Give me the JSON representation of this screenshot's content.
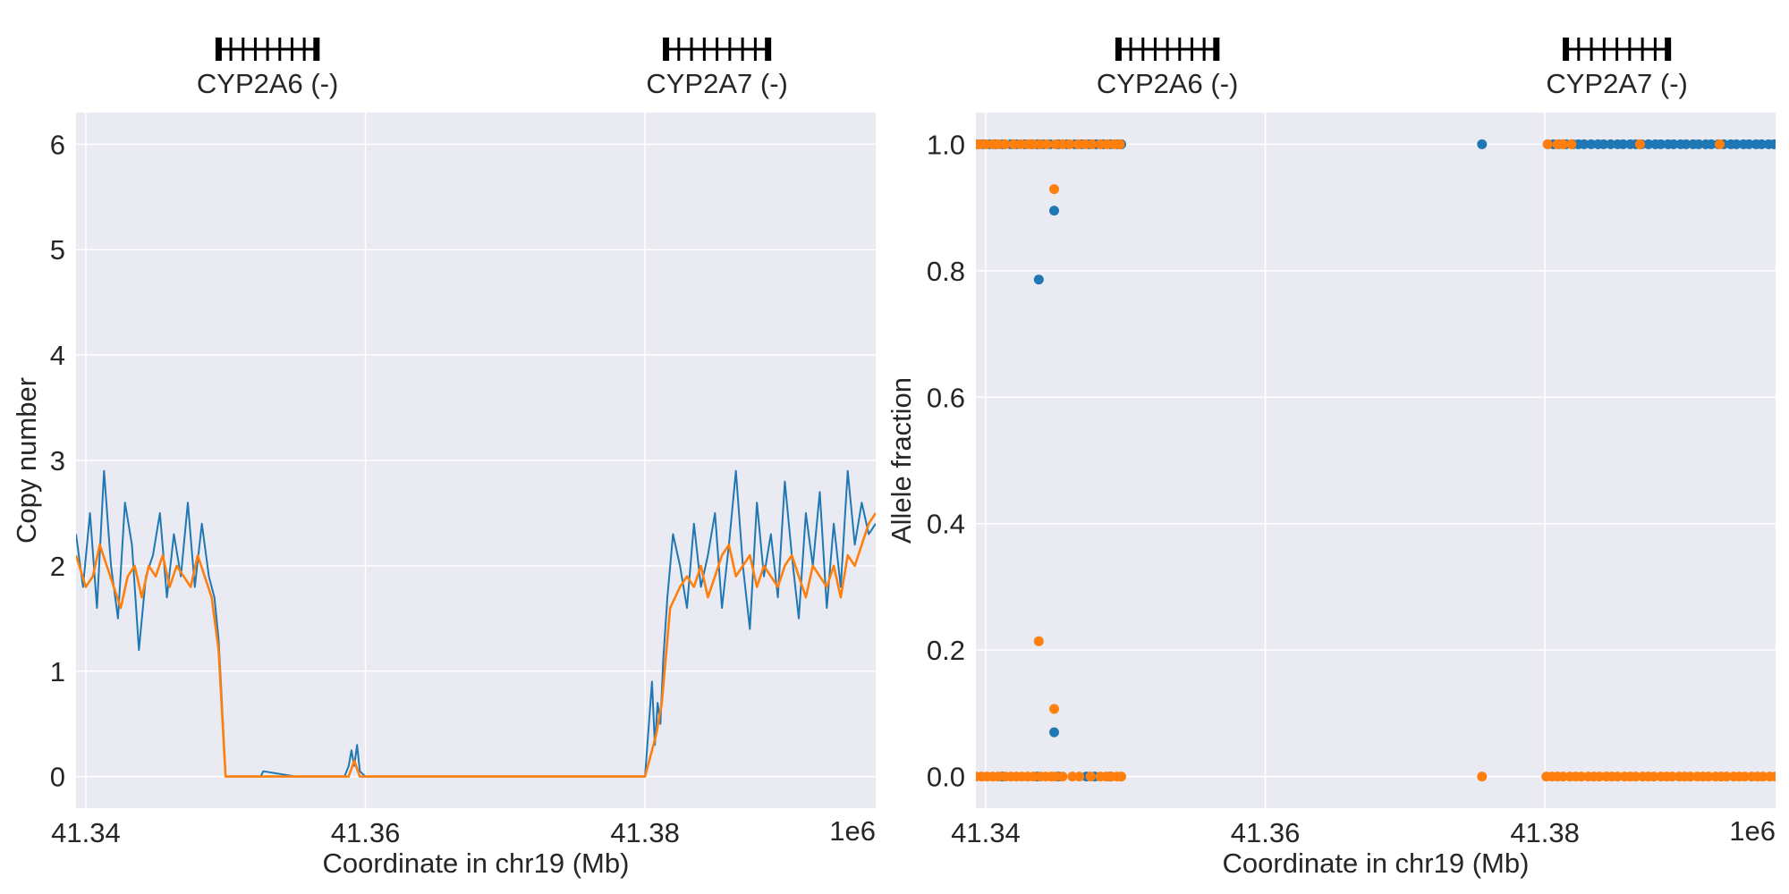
{
  "chart_data": [
    {
      "type": "line",
      "xlabel": "Coordinate in chr19 (Mb)",
      "ylabel": "Copy number",
      "x_offset_label": "1e6",
      "xlim": [
        41.3393,
        41.3965
      ],
      "ylim": [
        -0.3,
        6.3
      ],
      "x_ticks": [
        41.34,
        41.36,
        41.38
      ],
      "x_tick_labels": [
        "41.34",
        "41.36",
        "41.38"
      ],
      "y_ticks": [
        0,
        1,
        2,
        3,
        4,
        5,
        6
      ],
      "y_tick_labels": [
        "0",
        "1",
        "2",
        "3",
        "4",
        "5",
        "6"
      ],
      "grid": true,
      "genes": [
        {
          "name": "CYP2A6 (-)",
          "start": 41.3495,
          "end": 41.3565
        },
        {
          "name": "CYP2A7 (-)",
          "start": 41.3815,
          "end": 41.3888
        }
      ],
      "series": [
        {
          "color": "#1f77b4",
          "x": [
            41.3393,
            41.3398,
            41.3403,
            41.3408,
            41.3413,
            41.3418,
            41.3423,
            41.3428,
            41.3433,
            41.3438,
            41.3443,
            41.3448,
            41.3453,
            41.3458,
            41.3463,
            41.3468,
            41.3473,
            41.3478,
            41.3483,
            41.3488,
            41.3492,
            41.3495,
            41.3497,
            41.35,
            41.351,
            41.3525,
            41.3527,
            41.355,
            41.3565,
            41.3585,
            41.3588,
            41.359,
            41.3592,
            41.3594,
            41.3596,
            41.36,
            41.363,
            41.365,
            41.37,
            41.3755,
            41.38,
            41.3805,
            41.3807,
            41.3809,
            41.3811,
            41.3813,
            41.3816,
            41.382,
            41.3825,
            41.383,
            41.3835,
            41.384,
            41.3845,
            41.385,
            41.3855,
            41.386,
            41.3865,
            41.387,
            41.3875,
            41.388,
            41.3885,
            41.389,
            41.3895,
            41.39,
            41.3905,
            41.391,
            41.3915,
            41.392,
            41.3925,
            41.393,
            41.3935,
            41.394,
            41.3945,
            41.395,
            41.3955,
            41.396,
            41.3965
          ],
          "y": [
            2.3,
            1.8,
            2.5,
            1.6,
            2.9,
            2.0,
            1.5,
            2.6,
            2.2,
            1.2,
            1.9,
            2.1,
            2.5,
            1.7,
            2.3,
            1.9,
            2.6,
            1.8,
            2.4,
            1.9,
            1.7,
            1.3,
            0.8,
            0.0,
            0.0,
            0.0,
            0.05,
            0.0,
            0.0,
            0.0,
            0.1,
            0.25,
            0.1,
            0.3,
            0.05,
            0.0,
            0.0,
            0.0,
            0.0,
            0.0,
            0.0,
            0.9,
            0.3,
            0.7,
            0.5,
            1.1,
            1.7,
            2.3,
            2.0,
            1.6,
            2.4,
            1.8,
            2.1,
            2.5,
            1.6,
            2.2,
            2.9,
            2.0,
            1.4,
            2.6,
            1.9,
            2.3,
            1.7,
            2.8,
            2.1,
            1.5,
            2.5,
            2.0,
            2.7,
            1.6,
            2.4,
            1.8,
            2.9,
            2.2,
            2.6,
            2.3,
            2.4
          ]
        },
        {
          "color": "#ff7f0e",
          "x": [
            41.3393,
            41.34,
            41.3405,
            41.341,
            41.3415,
            41.342,
            41.3425,
            41.343,
            41.3435,
            41.344,
            41.3445,
            41.345,
            41.3455,
            41.346,
            41.3465,
            41.347,
            41.3475,
            41.348,
            41.3485,
            41.349,
            41.3495,
            41.35,
            41.3588,
            41.3592,
            41.3596,
            41.36,
            41.38,
            41.3808,
            41.3812,
            41.3818,
            41.3825,
            41.383,
            41.3835,
            41.384,
            41.3845,
            41.385,
            41.3855,
            41.386,
            41.3865,
            41.387,
            41.3875,
            41.388,
            41.3885,
            41.389,
            41.3895,
            41.39,
            41.3905,
            41.391,
            41.3915,
            41.392,
            41.3925,
            41.393,
            41.3935,
            41.394,
            41.3945,
            41.395,
            41.3955,
            41.396,
            41.3965
          ],
          "y": [
            2.1,
            1.8,
            1.9,
            2.2,
            2.0,
            1.8,
            1.6,
            1.9,
            2.0,
            1.7,
            2.0,
            1.9,
            2.1,
            1.8,
            2.0,
            1.9,
            1.8,
            2.1,
            1.9,
            1.7,
            1.2,
            0.0,
            0.0,
            0.15,
            0.0,
            0.0,
            0.0,
            0.4,
            0.7,
            1.6,
            1.8,
            1.9,
            1.8,
            2.0,
            1.7,
            1.9,
            2.1,
            2.2,
            1.9,
            2.0,
            2.1,
            1.8,
            2.0,
            1.9,
            1.8,
            2.0,
            2.1,
            1.9,
            1.7,
            2.0,
            1.9,
            1.8,
            2.0,
            1.7,
            2.1,
            2.0,
            2.2,
            2.4,
            2.5
          ]
        }
      ]
    },
    {
      "type": "scatter",
      "xlabel": "Coordinate in chr19 (Mb)",
      "ylabel": "Allele fraction",
      "x_offset_label": "1e6",
      "xlim": [
        41.3393,
        41.3965
      ],
      "ylim": [
        -0.05,
        1.05
      ],
      "x_ticks": [
        41.34,
        41.36,
        41.38
      ],
      "x_tick_labels": [
        "41.34",
        "41.36",
        "41.38"
      ],
      "y_ticks": [
        0.0,
        0.2,
        0.4,
        0.6,
        0.8,
        1.0
      ],
      "y_tick_labels": [
        "0.0",
        "0.2",
        "0.4",
        "0.6",
        "0.8",
        "1.0"
      ],
      "grid": true,
      "genes": [
        {
          "name": "CYP2A6 (-)",
          "start": 41.3495,
          "end": 41.3565
        },
        {
          "name": "CYP2A7 (-)",
          "start": 41.3815,
          "end": 41.3888
        }
      ],
      "series": [
        {
          "color": "#1f77b4",
          "points": [
            [
              41.3394,
              1.0
            ],
            [
              41.3398,
              1.0
            ],
            [
              41.3403,
              1.0
            ],
            [
              41.3407,
              1.0
            ],
            [
              41.3412,
              1.0
            ],
            [
              41.3418,
              1.0
            ],
            [
              41.3422,
              1.0
            ],
            [
              41.3428,
              1.0
            ],
            [
              41.3433,
              1.0
            ],
            [
              41.3437,
              1.0
            ],
            [
              41.3441,
              1.0
            ],
            [
              41.3446,
              1.0
            ],
            [
              41.3452,
              1.0
            ],
            [
              41.3458,
              1.0
            ],
            [
              41.3464,
              1.0
            ],
            [
              41.3469,
              1.0
            ],
            [
              41.3474,
              1.0
            ],
            [
              41.3479,
              1.0
            ],
            [
              41.3484,
              1.0
            ],
            [
              41.3489,
              1.0
            ],
            [
              41.3494,
              1.0
            ],
            [
              41.3497,
              1.0
            ],
            [
              41.3438,
              0.786
            ],
            [
              41.3449,
              0.895
            ],
            [
              41.3449,
              0.07
            ],
            [
              41.3412,
              0.0
            ],
            [
              41.3437,
              0.0
            ],
            [
              41.3452,
              0.0
            ],
            [
              41.3472,
              0.0
            ],
            [
              41.3478,
              0.0
            ],
            [
              41.3489,
              0.0
            ],
            [
              41.3755,
              1.0
            ],
            [
              41.3802,
              1.0
            ],
            [
              41.3806,
              1.0
            ],
            [
              41.381,
              1.0
            ],
            [
              41.3815,
              1.0
            ],
            [
              41.382,
              1.0
            ],
            [
              41.3824,
              1.0
            ],
            [
              41.3828,
              1.0
            ],
            [
              41.3833,
              1.0
            ],
            [
              41.3838,
              1.0
            ],
            [
              41.3842,
              1.0
            ],
            [
              41.3847,
              1.0
            ],
            [
              41.3852,
              1.0
            ],
            [
              41.3856,
              1.0
            ],
            [
              41.3861,
              1.0
            ],
            [
              41.3865,
              1.0
            ],
            [
              41.3869,
              1.0
            ],
            [
              41.3874,
              1.0
            ],
            [
              41.3879,
              1.0
            ],
            [
              41.3883,
              1.0
            ],
            [
              41.3888,
              1.0
            ],
            [
              41.3892,
              1.0
            ],
            [
              41.3897,
              1.0
            ],
            [
              41.3901,
              1.0
            ],
            [
              41.3906,
              1.0
            ],
            [
              41.391,
              1.0
            ],
            [
              41.3915,
              1.0
            ],
            [
              41.3919,
              1.0
            ],
            [
              41.3924,
              1.0
            ],
            [
              41.3928,
              1.0
            ],
            [
              41.3933,
              1.0
            ],
            [
              41.3937,
              1.0
            ],
            [
              41.3942,
              1.0
            ],
            [
              41.3946,
              1.0
            ],
            [
              41.3951,
              1.0
            ],
            [
              41.3955,
              1.0
            ],
            [
              41.396,
              1.0
            ],
            [
              41.3964,
              1.0
            ]
          ]
        },
        {
          "color": "#ff7f0e",
          "points": [
            [
              41.3393,
              1.0
            ],
            [
              41.3396,
              1.0
            ],
            [
              41.34,
              1.0
            ],
            [
              41.3405,
              1.0
            ],
            [
              41.3409,
              1.0
            ],
            [
              41.3414,
              1.0
            ],
            [
              41.342,
              1.0
            ],
            [
              41.3425,
              1.0
            ],
            [
              41.343,
              1.0
            ],
            [
              41.3434,
              1.0
            ],
            [
              41.3439,
              1.0
            ],
            [
              41.3444,
              1.0
            ],
            [
              41.345,
              1.0
            ],
            [
              41.3455,
              1.0
            ],
            [
              41.346,
              1.0
            ],
            [
              41.3466,
              1.0
            ],
            [
              41.3471,
              1.0
            ],
            [
              41.3476,
              1.0
            ],
            [
              41.3482,
              1.0
            ],
            [
              41.3487,
              1.0
            ],
            [
              41.3492,
              1.0
            ],
            [
              41.3496,
              1.0
            ],
            [
              41.3449,
              0.929
            ],
            [
              41.3438,
              0.214
            ],
            [
              41.3449,
              0.107
            ],
            [
              41.3393,
              0.0
            ],
            [
              41.3397,
              0.0
            ],
            [
              41.3401,
              0.0
            ],
            [
              41.3405,
              0.0
            ],
            [
              41.3409,
              0.0
            ],
            [
              41.3414,
              0.0
            ],
            [
              41.3418,
              0.0
            ],
            [
              41.3422,
              0.0
            ],
            [
              41.3426,
              0.0
            ],
            [
              41.343,
              0.0
            ],
            [
              41.3434,
              0.0
            ],
            [
              41.3439,
              0.0
            ],
            [
              41.3443,
              0.0
            ],
            [
              41.3447,
              0.0
            ],
            [
              41.345,
              0.0
            ],
            [
              41.3455,
              0.0
            ],
            [
              41.3462,
              0.0
            ],
            [
              41.3467,
              0.0
            ],
            [
              41.3475,
              0.0
            ],
            [
              41.3482,
              0.0
            ],
            [
              41.3486,
              0.0
            ],
            [
              41.349,
              0.0
            ],
            [
              41.3494,
              0.0
            ],
            [
              41.3497,
              0.0
            ],
            [
              41.3755,
              0.0
            ],
            [
              41.3802,
              1.0
            ],
            [
              41.3809,
              1.0
            ],
            [
              41.3813,
              1.0
            ],
            [
              41.3819,
              1.0
            ],
            [
              41.3868,
              1.0
            ],
            [
              41.3925,
              1.0
            ],
            [
              41.3801,
              0.0
            ],
            [
              41.3805,
              0.0
            ],
            [
              41.3809,
              0.0
            ],
            [
              41.3813,
              0.0
            ],
            [
              41.3818,
              0.0
            ],
            [
              41.3822,
              0.0
            ],
            [
              41.3826,
              0.0
            ],
            [
              41.3831,
              0.0
            ],
            [
              41.3835,
              0.0
            ],
            [
              41.3839,
              0.0
            ],
            [
              41.3844,
              0.0
            ],
            [
              41.3848,
              0.0
            ],
            [
              41.3852,
              0.0
            ],
            [
              41.3857,
              0.0
            ],
            [
              41.3861,
              0.0
            ],
            [
              41.3865,
              0.0
            ],
            [
              41.387,
              0.0
            ],
            [
              41.3874,
              0.0
            ],
            [
              41.3878,
              0.0
            ],
            [
              41.3883,
              0.0
            ],
            [
              41.3887,
              0.0
            ],
            [
              41.3891,
              0.0
            ],
            [
              41.3896,
              0.0
            ],
            [
              41.39,
              0.0
            ],
            [
              41.3904,
              0.0
            ],
            [
              41.3909,
              0.0
            ],
            [
              41.3913,
              0.0
            ],
            [
              41.3917,
              0.0
            ],
            [
              41.3922,
              0.0
            ],
            [
              41.3926,
              0.0
            ],
            [
              41.393,
              0.0
            ],
            [
              41.3935,
              0.0
            ],
            [
              41.3939,
              0.0
            ],
            [
              41.3943,
              0.0
            ],
            [
              41.3948,
              0.0
            ],
            [
              41.3952,
              0.0
            ],
            [
              41.3956,
              0.0
            ],
            [
              41.3961,
              0.0
            ],
            [
              41.3965,
              0.0
            ]
          ]
        }
      ]
    }
  ]
}
